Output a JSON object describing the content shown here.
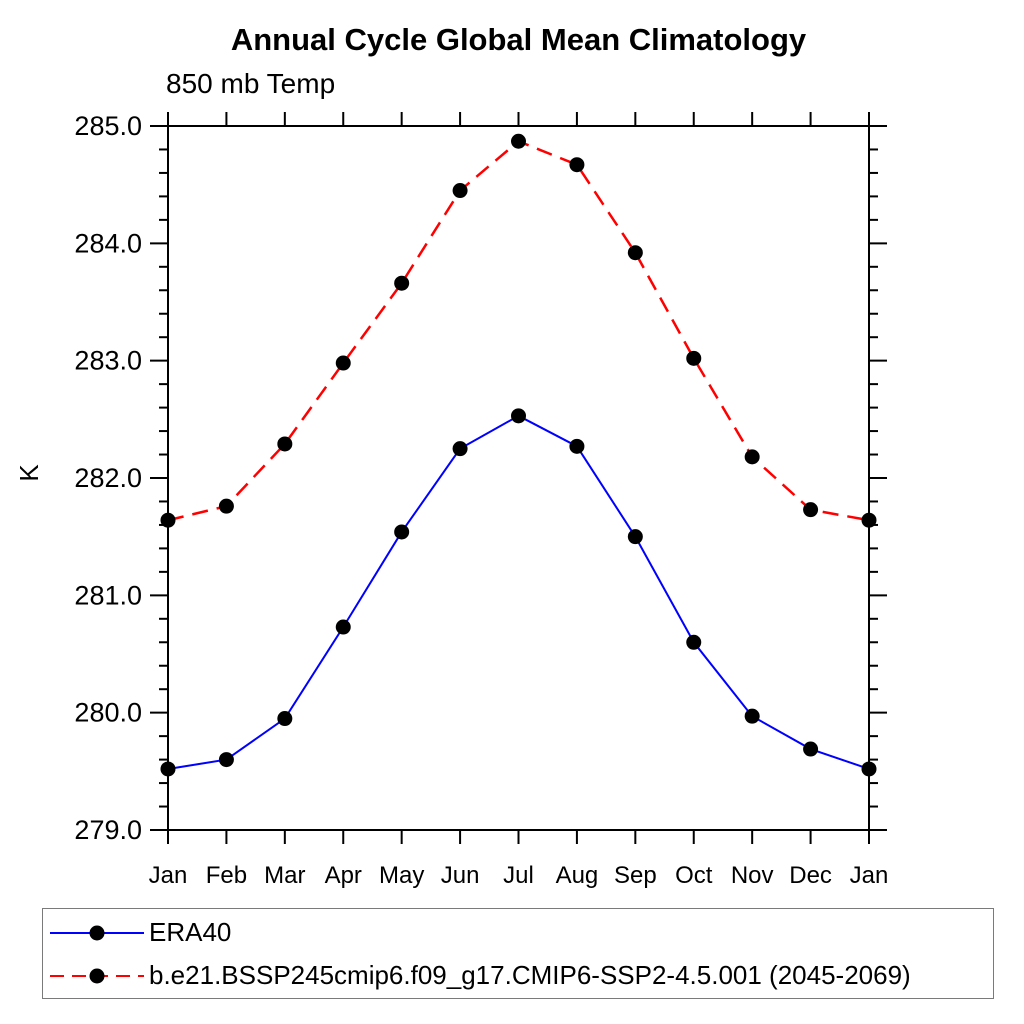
{
  "page": {
    "background": "#ffffff",
    "frame_color": "#000000"
  },
  "chart_data": {
    "type": "line",
    "title": "Annual Cycle Global Mean Climatology",
    "subtitle": "850 mb Temp",
    "ylabel": "K",
    "xlabel": "",
    "categories": [
      "Jan",
      "Feb",
      "Mar",
      "Apr",
      "May",
      "Jun",
      "Jul",
      "Aug",
      "Sep",
      "Oct",
      "Nov",
      "Dec",
      "Jan"
    ],
    "ylim": [
      279.0,
      285.0
    ],
    "ytick_major_interval": 1.0,
    "ytick_minor_interval": 0.2,
    "ytick_labels": [
      "279.0",
      "280.0",
      "281.0",
      "282.0",
      "283.0",
      "284.0",
      "285.0"
    ],
    "grid": false,
    "tick_direction": "out",
    "legend_position": "bottom-left-box",
    "marker": {
      "shape": "circle",
      "color": "#000000",
      "radius": 7.5
    },
    "series": [
      {
        "name": "ERA40",
        "color": "#0000ff",
        "line_style": "solid",
        "values": [
          279.52,
          279.6,
          279.95,
          280.73,
          281.54,
          282.25,
          282.53,
          282.27,
          281.5,
          280.6,
          279.97,
          279.69,
          279.52
        ]
      },
      {
        "name": "b.e21.BSSP245cmip6.f09_g17.CMIP6-SSP2-4.5.001 (2045-2069)",
        "color": "#ff0000",
        "line_style": "dashed",
        "values": [
          281.64,
          281.76,
          282.29,
          282.98,
          283.66,
          284.45,
          284.87,
          284.67,
          283.92,
          283.02,
          282.18,
          281.73,
          281.64
        ]
      }
    ]
  }
}
